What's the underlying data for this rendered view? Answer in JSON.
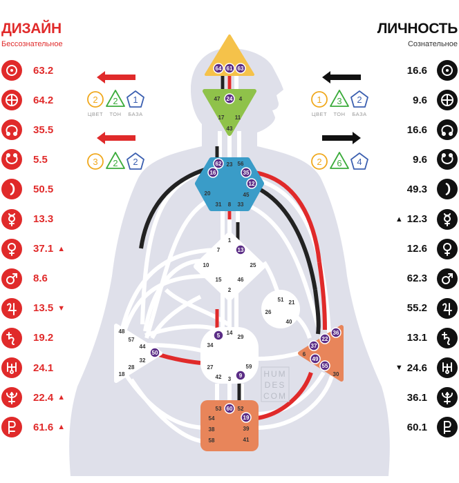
{
  "design": {
    "title": "ДИЗАЙН",
    "subtitle": "Бессознательное",
    "color": "#e02a2a",
    "rows": [
      {
        "icon": "sun-icon",
        "value": "63.2",
        "mark": ""
      },
      {
        "icon": "earth-icon",
        "value": "64.2",
        "mark": ""
      },
      {
        "icon": "north-node-icon",
        "value": "35.5",
        "mark": ""
      },
      {
        "icon": "south-node-icon",
        "value": "5.5",
        "mark": ""
      },
      {
        "icon": "moon-icon",
        "value": "50.5",
        "mark": ""
      },
      {
        "icon": "mercury-icon",
        "value": "13.3",
        "mark": ""
      },
      {
        "icon": "venus-icon",
        "value": "37.1",
        "mark": "▲"
      },
      {
        "icon": "mars-icon",
        "value": "8.6",
        "mark": ""
      },
      {
        "icon": "jupiter-icon",
        "value": "13.5",
        "mark": "▼"
      },
      {
        "icon": "saturn-icon",
        "value": "19.2",
        "mark": ""
      },
      {
        "icon": "uranus-icon",
        "value": "24.1",
        "mark": ""
      },
      {
        "icon": "neptune-icon",
        "value": "22.4",
        "mark": "▲"
      },
      {
        "icon": "pluto-icon",
        "value": "61.6",
        "mark": "▲"
      }
    ],
    "variables": [
      {
        "arrow": "left",
        "items": [
          "2",
          "2",
          "1"
        ]
      },
      {
        "arrow": "left",
        "items": [
          "3",
          "2",
          "2"
        ]
      }
    ]
  },
  "personality": {
    "title": "ЛИЧНОСТЬ",
    "subtitle": "Сознательное",
    "color": "#111111",
    "rows": [
      {
        "icon": "sun-icon",
        "value": "16.6",
        "mark": ""
      },
      {
        "icon": "earth-icon",
        "value": "9.6",
        "mark": ""
      },
      {
        "icon": "north-node-icon",
        "value": "16.6",
        "mark": ""
      },
      {
        "icon": "south-node-icon",
        "value": "9.6",
        "mark": ""
      },
      {
        "icon": "moon-icon",
        "value": "49.3",
        "mark": ""
      },
      {
        "icon": "mercury-icon",
        "value": "12.3",
        "mark": "▲"
      },
      {
        "icon": "venus-icon",
        "value": "12.6",
        "mark": ""
      },
      {
        "icon": "mars-icon",
        "value": "62.3",
        "mark": ""
      },
      {
        "icon": "jupiter-icon",
        "value": "55.2",
        "mark": ""
      },
      {
        "icon": "saturn-icon",
        "value": "13.1",
        "mark": ""
      },
      {
        "icon": "uranus-icon",
        "value": "24.6",
        "mark": "▼"
      },
      {
        "icon": "neptune-icon",
        "value": "36.1",
        "mark": ""
      },
      {
        "icon": "pluto-icon",
        "value": "60.1",
        "mark": ""
      }
    ],
    "variables": [
      {
        "arrow": "left",
        "items": [
          "1",
          "3",
          "2"
        ]
      },
      {
        "arrow": "right",
        "items": [
          "2",
          "6",
          "4"
        ]
      }
    ]
  },
  "variable_labels": [
    "ЦВЕТ",
    "ТОН",
    "БАЗА"
  ],
  "variable_colors": [
    "#f0a81c",
    "#3aab3a",
    "#3b5fb0"
  ],
  "watermark": [
    "HUM",
    "DES",
    "COM"
  ],
  "colors": {
    "head": "#f5c24a",
    "ajna": "#8fc24a",
    "throat": "#3a9cc8",
    "g_center": "#ffffff",
    "sacral": "#e8855a",
    "root": "#e8855a",
    "solar_plexus": "#e8855a",
    "defined_gate": "#5b2d86",
    "channel_red": "#e02a2a",
    "channel_black": "#222222",
    "body": "#dfe0ea"
  },
  "centers": {
    "head": {
      "gates": [
        "64",
        "61",
        "63"
      ]
    },
    "ajna": {
      "gates": [
        "47",
        "24",
        "4",
        "17",
        "11",
        "43"
      ]
    },
    "throat": {
      "gates": [
        "62",
        "23",
        "56",
        "16",
        "35",
        "12",
        "20",
        "45",
        "31",
        "8",
        "33"
      ]
    },
    "g": {
      "gates": [
        "1",
        "13",
        "7",
        "10",
        "25",
        "15",
        "46",
        "2"
      ]
    },
    "ego": {
      "gates": [
        "51",
        "21",
        "26",
        "40"
      ]
    },
    "spleen": {
      "gates": [
        "48",
        "57",
        "44",
        "50",
        "32",
        "28",
        "18"
      ]
    },
    "solar_plexus": {
      "gates": [
        "36",
        "22",
        "37",
        "6",
        "49",
        "55",
        "30"
      ]
    },
    "sacral": {
      "gates": [
        "5",
        "14",
        "29",
        "34",
        "27",
        "42",
        "3",
        "9",
        "59"
      ]
    },
    "root": {
      "gates": [
        "53",
        "60",
        "52",
        "54",
        "19",
        "38",
        "39",
        "58",
        "41"
      ]
    }
  },
  "defined_gates": [
    "64",
    "61",
    "63",
    "24",
    "62",
    "16",
    "35",
    "12",
    "13",
    "5",
    "9",
    "50",
    "37",
    "22",
    "36",
    "49",
    "55",
    "60",
    "19"
  ]
}
